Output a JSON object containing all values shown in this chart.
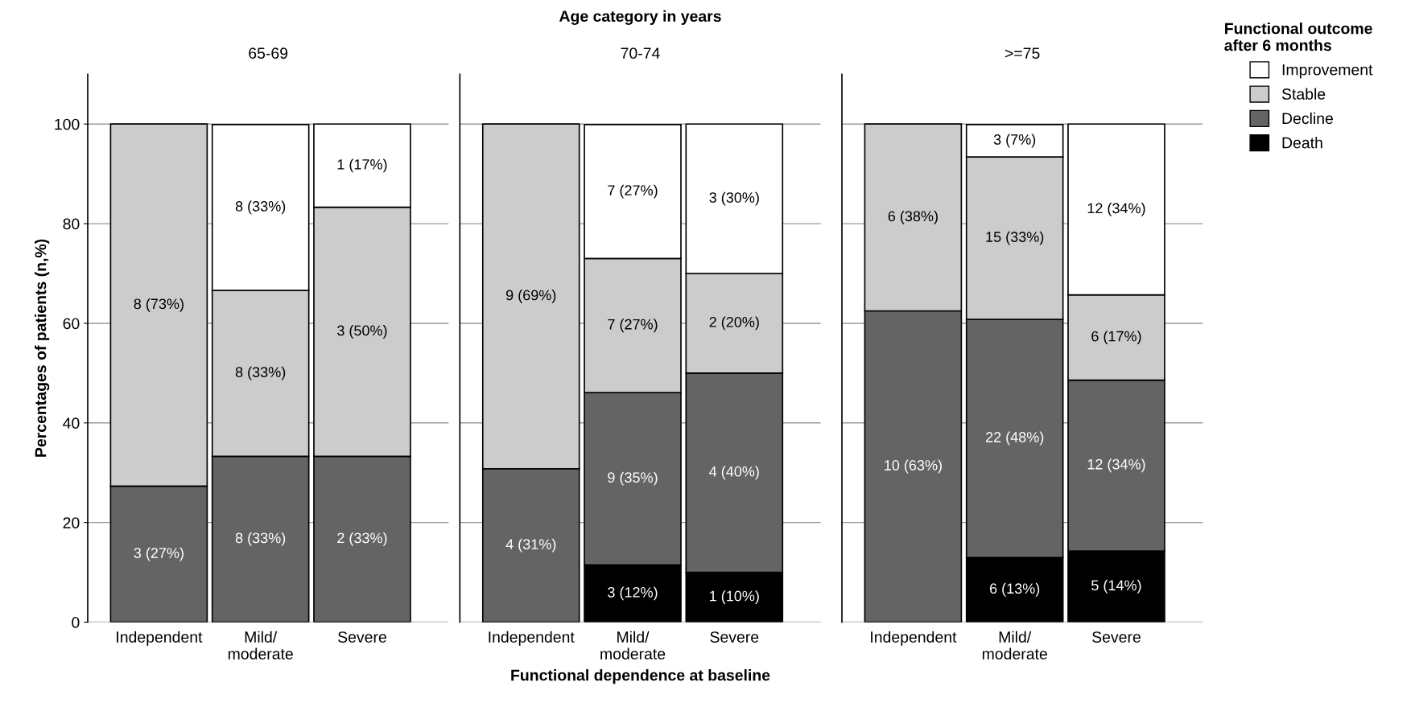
{
  "chart_data": [
    {
      "type": "bar",
      "stacked": true,
      "title": "65-69",
      "ylabel": "Percentages of patients (n,%)",
      "categories": [
        "Independent",
        "Mild/\nmoderate",
        "Severe"
      ],
      "ylim": [
        0,
        110
      ],
      "yticks": [
        0,
        20,
        40,
        60,
        80,
        100
      ],
      "grid": "y",
      "series": [
        {
          "color": "#000000",
          "values": [
            0,
            0,
            0
          ],
          "value_labels": [
            null,
            null,
            null
          ]
        },
        {
          "color": "#646464",
          "values": [
            27.3,
            33.3,
            33.3
          ],
          "value_labels": [
            "3 (27%)",
            "8 (33%)",
            "2 (33%)"
          ]
        },
        {
          "color": "#cccccc",
          "values": [
            72.7,
            33.3,
            50.0
          ],
          "value_labels": [
            "8 (73%)",
            "8 (33%)",
            "3 (50%)"
          ]
        },
        {
          "color": "#ffffff",
          "values": [
            0,
            33.3,
            16.7
          ],
          "value_labels": [
            null,
            "8 (33%)",
            "1 (17%)"
          ]
        }
      ]
    },
    {
      "type": "bar",
      "stacked": true,
      "title": "70-74",
      "annotations": [
        "Age category in years"
      ],
      "xlabel": "Functional dependence at baseline",
      "categories": [
        "Independent",
        "Mild/\nmoderate",
        "Severe"
      ],
      "ylim": [
        0,
        110
      ],
      "yticks": [
        0,
        20,
        40,
        60,
        80,
        100
      ],
      "grid": "y",
      "tick_labels": "x",
      "series": [
        {
          "color": "#000000",
          "values": [
            0,
            11.5,
            10.0
          ],
          "value_labels": [
            null,
            "3 (12%)",
            "1 (10%)"
          ]
        },
        {
          "color": "#646464",
          "values": [
            30.8,
            34.6,
            40.0
          ],
          "value_labels": [
            "4 (31%)",
            "9 (35%)",
            "4 (40%)"
          ]
        },
        {
          "color": "#cccccc",
          "values": [
            69.2,
            26.9,
            20.0
          ],
          "value_labels": [
            "9 (69%)",
            "7 (27%)",
            "2 (20%)"
          ]
        },
        {
          "color": "#ffffff",
          "values": [
            0,
            26.9,
            30.0
          ],
          "value_labels": [
            null,
            "7 (27%)",
            "3 (30%)"
          ]
        }
      ]
    },
    {
      "type": "bar",
      "stacked": true,
      "title": ">=75",
      "categories": [
        "Independent",
        "Mild/\nmoderate",
        "Severe"
      ],
      "ylim": [
        0,
        110
      ],
      "yticks": [
        0,
        20,
        40,
        60,
        80,
        100
      ],
      "grid": "y",
      "tick_labels": "x",
      "legend": "top right",
      "legend_title": "Functional outcome\nafter 6 months",
      "series": [
        {
          "name": "Death",
          "color": "#000000",
          "values": [
            0,
            13.0,
            14.3
          ],
          "value_labels": [
            null,
            "6 (13%)",
            "5 (14%)"
          ]
        },
        {
          "name": "Decline",
          "color": "#646464",
          "values": [
            62.5,
            47.8,
            34.3
          ],
          "value_labels": [
            "10 (63%)",
            "22 (48%)",
            "12 (34%)"
          ]
        },
        {
          "name": "Stable",
          "color": "#cccccc",
          "values": [
            37.5,
            32.6,
            17.1
          ],
          "value_labels": [
            "6 (38%)",
            "15 (33%)",
            "6 (17%)"
          ]
        },
        {
          "name": "Improvement",
          "color": "#ffffff",
          "values": [
            0,
            6.5,
            34.3
          ],
          "value_labels": [
            null,
            "3 (7%)",
            "12 (34%)"
          ]
        }
      ]
    }
  ]
}
